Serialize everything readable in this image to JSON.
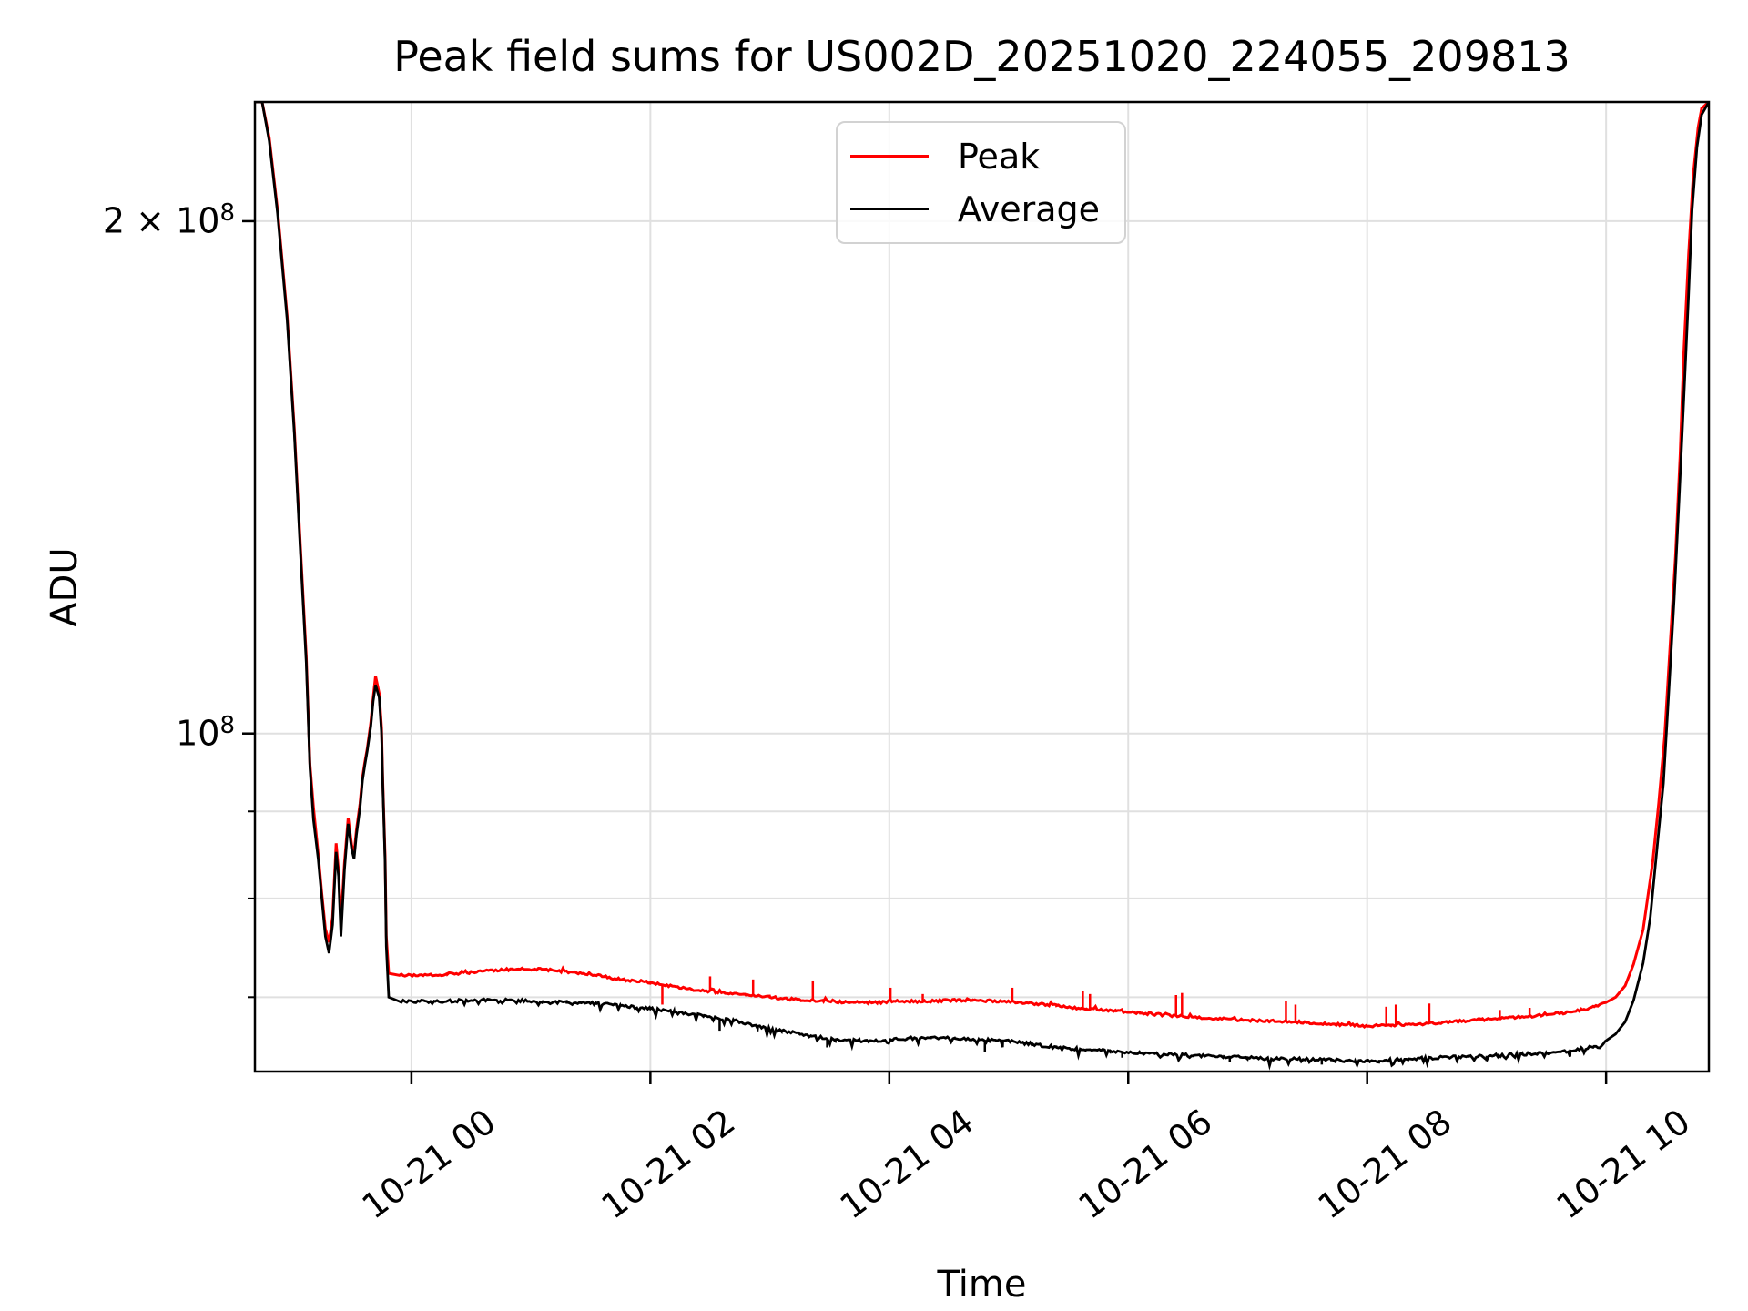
{
  "chart_data": {
    "type": "line",
    "title": "Peak field sums for US002D_20251020_224055_209813",
    "xlabel": "Time",
    "ylabel": "ADU",
    "x_unit": "hours since 2025-10-21 00:00",
    "x_range": [
      -1.31,
      10.86
    ],
    "y_scale": "log",
    "y_range": [
      63300000.0,
      235000000.0
    ],
    "grid": true,
    "grid_color": "#e0e0e0",
    "legend_position": "upper center",
    "x_ticks": [
      {
        "t": 0,
        "label": "10-21 00"
      },
      {
        "t": 2,
        "label": "10-21 02"
      },
      {
        "t": 4,
        "label": "10-21 04"
      },
      {
        "t": 6,
        "label": "10-21 06"
      },
      {
        "t": 8,
        "label": "10-21 08"
      },
      {
        "t": 10,
        "label": "10-21 10"
      }
    ],
    "y_ticks": [
      {
        "v": 200000000.0,
        "base": "2 × 10",
        "exp": "8"
      },
      {
        "v": 100000000.0,
        "base": "10",
        "exp": "8"
      }
    ],
    "y_minor_gridlines": [
      90000000.0,
      80000000.0,
      70000000.0
    ],
    "series": [
      {
        "name": "Peak",
        "color": "#ff0000",
        "points": [
          [
            -1.31,
            235000000.0
          ],
          [
            -1.25,
            235000000.0
          ],
          [
            -1.19,
            224000000.0
          ],
          [
            -1.12,
            203000000.0
          ],
          [
            -1.04,
            176000000.0
          ],
          [
            -0.98,
            151000000.0
          ],
          [
            -0.93,
            129000000.0
          ],
          [
            -0.88,
            111000000.0
          ],
          [
            -0.85,
            96000000.0
          ],
          [
            -0.82,
            90500000.0
          ],
          [
            -0.78,
            85000000.0
          ],
          [
            -0.75,
            80500000.0
          ],
          [
            -0.72,
            76800000.0
          ],
          [
            -0.69,
            75400000.0
          ],
          [
            -0.66,
            78000000.0
          ],
          [
            -0.63,
            86200000.0
          ],
          [
            -0.61,
            83000000.0
          ],
          [
            -0.59,
            77400000.0
          ],
          [
            -0.56,
            84000000.0
          ],
          [
            -0.53,
            89200000.0
          ],
          [
            -0.5,
            86000000.0
          ],
          [
            -0.48,
            85000000.0
          ],
          [
            -0.46,
            87800000.0
          ],
          [
            -0.43,
            91000000.0
          ],
          [
            -0.41,
            94200000.0
          ],
          [
            -0.39,
            96200000.0
          ],
          [
            -0.37,
            98000000.0
          ],
          [
            -0.34,
            101500000.0
          ],
          [
            -0.32,
            105000000.0
          ],
          [
            -0.3,
            108100000.0
          ],
          [
            -0.27,
            105600000.0
          ],
          [
            -0.25,
            100800000.0
          ],
          [
            -0.24,
            94000000.0
          ],
          [
            -0.22,
            84600000.0
          ],
          [
            -0.21,
            76000000.0
          ],
          [
            -0.19,
            72300000.0
          ],
          [
            -0.1,
            72100000.0
          ],
          [
            0.1,
            72100000.0
          ],
          [
            0.3,
            72200000.0
          ],
          [
            0.6,
            72500000.0
          ],
          [
            0.85,
            72700000.0
          ],
          [
            1.1,
            72700000.0
          ],
          [
            1.35,
            72400000.0
          ],
          [
            1.55,
            72100000.0
          ],
          [
            1.8,
            71600000.0
          ],
          [
            2.0,
            71400000.0
          ],
          [
            2.3,
            70800000.0
          ],
          [
            2.55,
            70500000.0
          ],
          [
            2.8,
            70200000.0
          ],
          [
            3.0,
            70000000.0
          ],
          [
            3.2,
            69800000.0
          ],
          [
            3.45,
            69600000.0
          ],
          [
            3.7,
            69500000.0
          ],
          [
            3.9,
            69500000.0
          ],
          [
            4.05,
            69600000.0
          ],
          [
            4.3,
            69600000.0
          ],
          [
            4.5,
            69700000.0
          ],
          [
            4.7,
            69700000.0
          ],
          [
            4.95,
            69600000.0
          ],
          [
            5.2,
            69400000.0
          ],
          [
            5.4,
            69200000.0
          ],
          [
            5.65,
            68900000.0
          ],
          [
            5.9,
            68700000.0
          ],
          [
            6.1,
            68500000.0
          ],
          [
            6.35,
            68300000.0
          ],
          [
            6.6,
            68100000.0
          ],
          [
            6.9,
            67900000.0
          ],
          [
            7.15,
            67800000.0
          ],
          [
            7.4,
            67700000.0
          ],
          [
            7.65,
            67500000.0
          ],
          [
            7.9,
            67400000.0
          ],
          [
            8.0,
            67300000.0
          ],
          [
            8.2,
            67400000.0
          ],
          [
            8.45,
            67500000.0
          ],
          [
            8.7,
            67700000.0
          ],
          [
            8.95,
            67900000.0
          ],
          [
            9.1,
            68000000.0
          ],
          [
            9.35,
            68200000.0
          ],
          [
            9.55,
            68400000.0
          ],
          [
            9.7,
            68600000.0
          ],
          [
            9.8,
            68800000.0
          ],
          [
            9.9,
            69100000.0
          ],
          [
            10.0,
            69500000.0
          ],
          [
            10.08,
            70000000.0
          ],
          [
            10.16,
            71100000.0
          ],
          [
            10.23,
            73200000.0
          ],
          [
            10.31,
            76700000.0
          ],
          [
            10.39,
            84000000.0
          ],
          [
            10.44,
            91000000.0
          ],
          [
            10.49,
            99500000.0
          ],
          [
            10.53,
            111000000.0
          ],
          [
            10.58,
            127000000.0
          ],
          [
            10.62,
            146000000.0
          ],
          [
            10.65,
            167000000.0
          ],
          [
            10.69,
            191000000.0
          ],
          [
            10.73,
            213000000.0
          ],
          [
            10.77,
            227000000.0
          ],
          [
            10.8,
            233000000.0
          ],
          [
            10.86,
            235000000.0
          ]
        ],
        "spikes": [
          [
            2.1,
            69300000.0
          ],
          [
            2.5,
            72000000.0
          ],
          [
            2.86,
            71700000.0
          ],
          [
            3.36,
            71600000.0
          ],
          [
            4.01,
            70900000.0
          ],
          [
            4.28,
            70300000.0
          ],
          [
            5.03,
            70900000.0
          ],
          [
            5.62,
            70600000.0
          ],
          [
            5.68,
            70300000.0
          ],
          [
            6.4,
            70200000.0
          ],
          [
            6.45,
            70400000.0
          ],
          [
            7.32,
            69600000.0
          ],
          [
            7.4,
            69300000.0
          ],
          [
            8.16,
            69100000.0
          ],
          [
            8.24,
            69300000.0
          ],
          [
            8.52,
            69400000.0
          ],
          [
            9.11,
            68800000.0
          ],
          [
            9.36,
            69000000.0
          ]
        ]
      },
      {
        "name": "Average",
        "color": "#000000",
        "points": [
          [
            -1.31,
            235000000.0
          ],
          [
            -1.25,
            235000000.0
          ],
          [
            -1.19,
            223000000.0
          ],
          [
            -1.12,
            202000000.0
          ],
          [
            -1.04,
            175000000.0
          ],
          [
            -0.98,
            150000000.0
          ],
          [
            -0.93,
            128000000.0
          ],
          [
            -0.88,
            110000000.0
          ],
          [
            -0.85,
            95500000.0
          ],
          [
            -0.82,
            89000000.0
          ],
          [
            -0.78,
            84400000.0
          ],
          [
            -0.75,
            80000000.0
          ],
          [
            -0.72,
            76000000.0
          ],
          [
            -0.69,
            74300000.0
          ],
          [
            -0.66,
            77200000.0
          ],
          [
            -0.63,
            85200000.0
          ],
          [
            -0.61,
            82400000.0
          ],
          [
            -0.59,
            76000000.0
          ],
          [
            -0.56,
            83200000.0
          ],
          [
            -0.53,
            88500000.0
          ],
          [
            -0.5,
            85500000.0
          ],
          [
            -0.48,
            84400000.0
          ],
          [
            -0.46,
            87200000.0
          ],
          [
            -0.43,
            90500000.0
          ],
          [
            -0.41,
            93800000.0
          ],
          [
            -0.39,
            95800000.0
          ],
          [
            -0.37,
            97700000.0
          ],
          [
            -0.34,
            101000000.0
          ],
          [
            -0.32,
            104500000.0
          ],
          [
            -0.3,
            106800000.0
          ],
          [
            -0.27,
            105000000.0
          ],
          [
            -0.25,
            100000000.0
          ],
          [
            -0.24,
            93500000.0
          ],
          [
            -0.22,
            84000000.0
          ],
          [
            -0.21,
            75000000.0
          ],
          [
            -0.19,
            70000000.0
          ],
          [
            -0.1,
            69600000.0
          ],
          [
            0.2,
            69600000.0
          ],
          [
            0.5,
            69700000.0
          ],
          [
            0.85,
            69700000.0
          ],
          [
            1.1,
            69600000.0
          ],
          [
            1.3,
            69500000.0
          ],
          [
            1.55,
            69400000.0
          ],
          [
            1.75,
            69200000.0
          ],
          [
            2.0,
            68900000.0
          ],
          [
            2.2,
            68600000.0
          ],
          [
            2.45,
            68300000.0
          ],
          [
            2.7,
            67800000.0
          ],
          [
            2.9,
            67300000.0
          ],
          [
            3.1,
            66900000.0
          ],
          [
            3.35,
            66400000.0
          ],
          [
            3.55,
            66100000.0
          ],
          [
            3.75,
            66000000.0
          ],
          [
            3.95,
            66000000.0
          ],
          [
            4.15,
            66200000.0
          ],
          [
            4.35,
            66300000.0
          ],
          [
            4.55,
            66200000.0
          ],
          [
            4.75,
            66100000.0
          ],
          [
            4.95,
            66000000.0
          ],
          [
            5.2,
            65700000.0
          ],
          [
            5.4,
            65400000.0
          ],
          [
            5.65,
            65200000.0
          ],
          [
            5.85,
            65100000.0
          ],
          [
            6.1,
            64900000.0
          ],
          [
            6.3,
            64800000.0
          ],
          [
            6.55,
            64700000.0
          ],
          [
            6.8,
            64600000.0
          ],
          [
            7.0,
            64500000.0
          ],
          [
            7.25,
            64400000.0
          ],
          [
            7.5,
            64400000.0
          ],
          [
            7.7,
            64300000.0
          ],
          [
            7.9,
            64200000.0
          ],
          [
            8.1,
            64200000.0
          ],
          [
            8.35,
            64400000.0
          ],
          [
            8.6,
            64500000.0
          ],
          [
            8.85,
            64600000.0
          ],
          [
            9.1,
            64700000.0
          ],
          [
            9.3,
            64800000.0
          ],
          [
            9.5,
            64900000.0
          ],
          [
            9.7,
            65100000.0
          ],
          [
            9.8,
            65300000.0
          ],
          [
            9.9,
            65500000.0
          ],
          [
            10.0,
            66000000.0
          ],
          [
            10.08,
            66600000.0
          ],
          [
            10.16,
            67700000.0
          ],
          [
            10.23,
            69700000.0
          ],
          [
            10.31,
            73300000.0
          ],
          [
            10.37,
            78000000.0
          ],
          [
            10.42,
            84800000.0
          ],
          [
            10.48,
            93500000.0
          ],
          [
            10.52,
            104500000.0
          ],
          [
            10.57,
            120000000.0
          ],
          [
            10.61,
            137000000.0
          ],
          [
            10.65,
            157000000.0
          ],
          [
            10.69,
            181000000.0
          ],
          [
            10.72,
            203000000.0
          ],
          [
            10.76,
            221000000.0
          ],
          [
            10.8,
            231000000.0
          ],
          [
            10.86,
            235000000.0
          ]
        ],
        "spikes": [
          [
            2.58,
            66900000.0
          ],
          [
            3.48,
            65400000.0
          ],
          [
            4.8,
            65000000.0
          ],
          [
            5.95,
            64500000.0
          ],
          [
            6.85,
            64100000.0
          ],
          [
            7.62,
            63900000.0
          ],
          [
            9.0,
            64200000.0
          ]
        ]
      }
    ]
  }
}
